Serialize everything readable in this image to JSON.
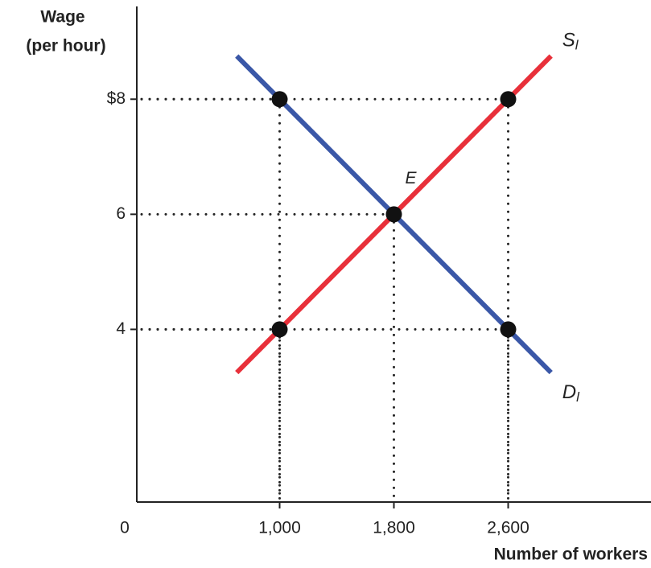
{
  "chart_data": {
    "type": "line",
    "ylabel": [
      "Wage",
      "(per hour)"
    ],
    "xlabel": "Number of workers",
    "origin_label": "0",
    "xlim": [
      0,
      3600
    ],
    "ylim": [
      1,
      9.5
    ],
    "xticks": [
      {
        "value": 1000,
        "label": "1,000"
      },
      {
        "value": 1800,
        "label": "1,800"
      },
      {
        "value": 2600,
        "label": "2,600"
      }
    ],
    "yticks": [
      {
        "value": 8,
        "label": "$8"
      },
      6,
      4
    ],
    "series": [
      {
        "name": "S",
        "subscript": "l",
        "color": "#e8303a",
        "x": [
          700,
          2900
        ],
        "values": [
          3.25,
          8.75
        ]
      },
      {
        "name": "D",
        "subscript": "l",
        "color": "#3a57a7",
        "x": [
          700,
          2900
        ],
        "values": [
          8.75,
          3.25
        ]
      }
    ],
    "points": [
      {
        "x": 1000,
        "y": 8
      },
      {
        "x": 2600,
        "y": 8
      },
      {
        "x": 1800,
        "y": 6
      },
      {
        "x": 1000,
        "y": 4
      },
      {
        "x": 2600,
        "y": 4
      }
    ],
    "annotations": [
      {
        "text": "E",
        "x": 1800,
        "y": 6
      }
    ]
  }
}
